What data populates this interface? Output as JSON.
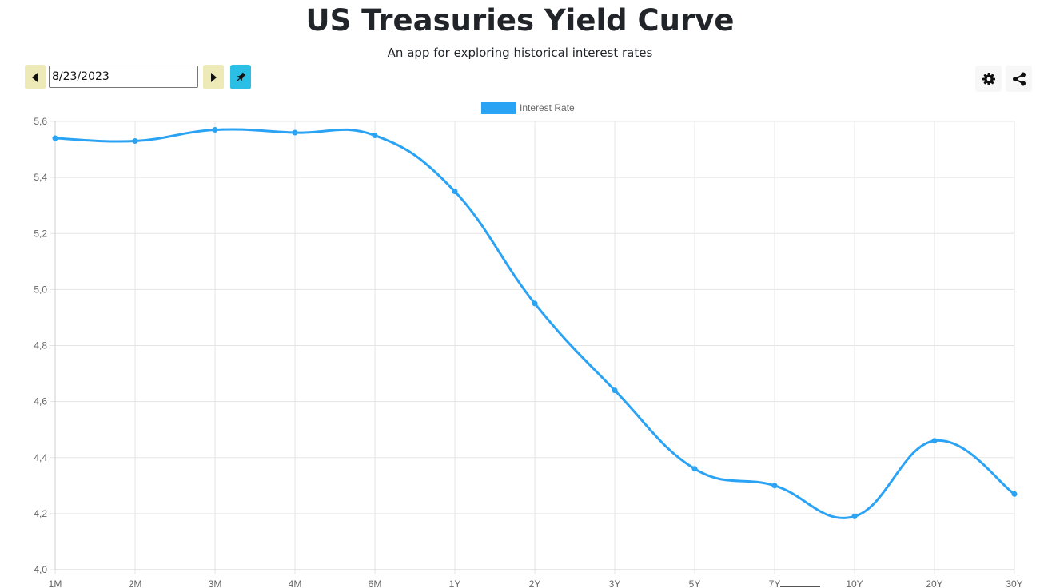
{
  "header": {
    "title": "US Treasuries Yield Curve",
    "subtitle": "An app for exploring historical interest rates"
  },
  "toolbar": {
    "date_value": "8/23/2023",
    "prev_icon": "caret-left-icon",
    "next_icon": "caret-right-icon",
    "pin_icon": "pin-icon",
    "settings_icon": "gear-icon",
    "share_icon": "share-icon"
  },
  "colors": {
    "accent": "#2ba3f4",
    "nav_button": "#eeeab8",
    "pin_button": "#2bbfe6",
    "grid": "#e5e5e5",
    "tick_text": "#666666"
  },
  "chart_data": {
    "type": "line",
    "title": "",
    "xlabel": "",
    "ylabel": "",
    "categories": [
      "1M",
      "2M",
      "3M",
      "4M",
      "6M",
      "1Y",
      "2Y",
      "3Y",
      "5Y",
      "7Y",
      "10Y",
      "20Y",
      "30Y"
    ],
    "series": [
      {
        "name": "Interest Rate",
        "values": [
          5.54,
          5.53,
          5.57,
          5.56,
          5.55,
          5.35,
          4.95,
          4.64,
          4.36,
          4.3,
          4.19,
          4.46,
          4.27
        ]
      }
    ],
    "ylim": [
      4.0,
      5.6
    ],
    "yticks": [
      "4,0",
      "4,2",
      "4,4",
      "4,6",
      "4,8",
      "5,0",
      "5,2",
      "5,4",
      "5,6"
    ],
    "grid": true,
    "legend_position": "top-center"
  }
}
